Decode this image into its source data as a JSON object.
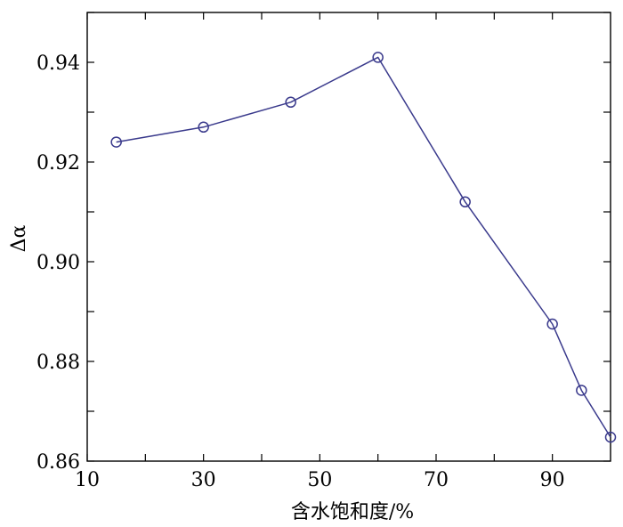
{
  "chart_data": {
    "type": "line",
    "xlabel": "含水饱和度/%",
    "ylabel": "Δα",
    "xlim": [
      10,
      100
    ],
    "ylim": [
      0.86,
      0.95
    ],
    "x_ticks": [
      10,
      30,
      50,
      70,
      90
    ],
    "x_tick_labels": [
      "10",
      "30",
      "50",
      "70",
      "90"
    ],
    "y_ticks": [
      0.86,
      0.88,
      0.9,
      0.92,
      0.94
    ],
    "y_tick_labels": [
      "0.86",
      "0.88",
      "0.90",
      "0.92",
      "0.94"
    ],
    "grid": false,
    "legend": "none",
    "series": [
      {
        "marker": "circle",
        "color": "#3a3a8c",
        "x": [
          15,
          30,
          45,
          60,
          75,
          90,
          95,
          100
        ],
        "y": [
          0.924,
          0.927,
          0.932,
          0.941,
          0.912,
          0.8875,
          0.8742,
          0.8648
        ]
      }
    ]
  }
}
